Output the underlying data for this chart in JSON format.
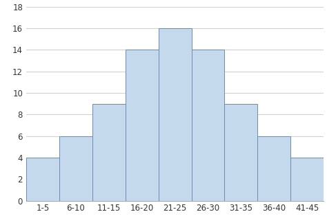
{
  "categories": [
    "1-5",
    "6-10",
    "11-15",
    "16-20",
    "21-25",
    "26-30",
    "31-35",
    "36-40",
    "41-45"
  ],
  "values": [
    4,
    6,
    9,
    14,
    16,
    14,
    9,
    6,
    4
  ],
  "bar_color": "#c5d9ec",
  "bar_edge_color": "#6b8cae",
  "bar_edge_width": 0.7,
  "ylim": [
    0,
    18
  ],
  "yticks": [
    0,
    2,
    4,
    6,
    8,
    10,
    12,
    14,
    16,
    18
  ],
  "grid_color": "#d0d0d0",
  "grid_linewidth": 0.8,
  "background_color": "#ffffff",
  "tick_fontsize": 8.5,
  "bar_width": 1.0
}
